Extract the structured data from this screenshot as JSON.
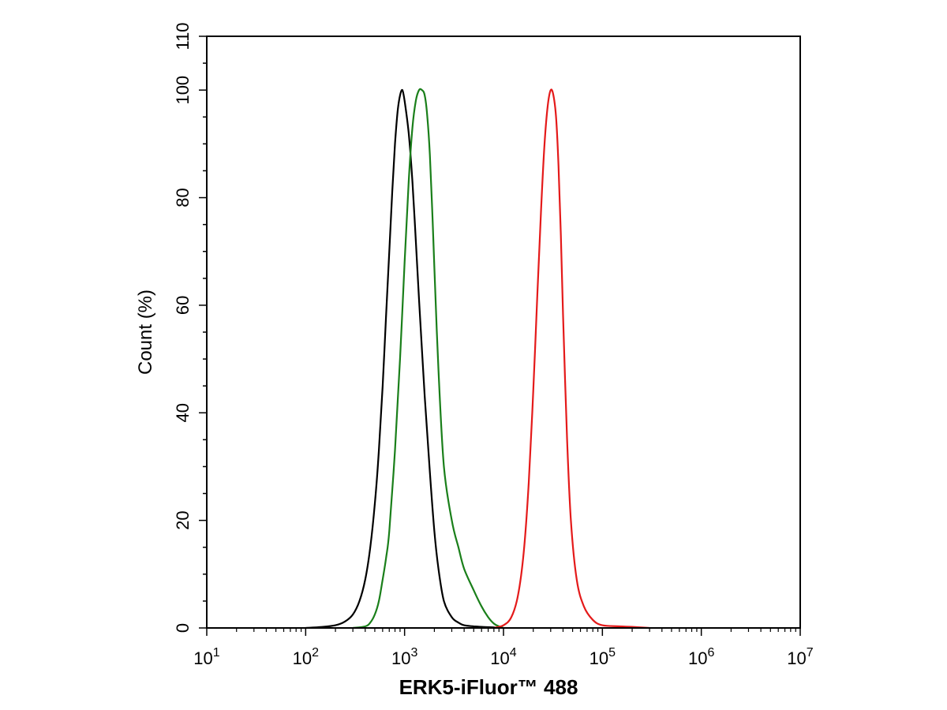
{
  "chart_data": {
    "type": "line",
    "x_scale": "log",
    "xlim": [
      10,
      10000000
    ],
    "ylim": [
      0,
      110
    ],
    "grid": false,
    "xlabel": "ERK5-iFluor™ 488",
    "ylabel": "Count  (%)",
    "x_ticks": [
      {
        "base": "10",
        "exp": "1",
        "value": 10
      },
      {
        "base": "10",
        "exp": "2",
        "value": 100
      },
      {
        "base": "10",
        "exp": "3",
        "value": 1000
      },
      {
        "base": "10",
        "exp": "4",
        "value": 10000
      },
      {
        "base": "10",
        "exp": "5",
        "value": 100000
      },
      {
        "base": "10",
        "exp": "6",
        "value": 1000000
      },
      {
        "base": "10",
        "exp": "7",
        "value": 10000000
      }
    ],
    "y_ticks": [
      "0",
      "20",
      "40",
      "60",
      "80",
      "100",
      "110"
    ],
    "series": [
      {
        "color": "#000000",
        "x": [
          100,
          150,
          200,
          250,
          300,
          350,
          400,
          450,
          500,
          550,
          600,
          650,
          700,
          750,
          800,
          850,
          900,
          950,
          1000,
          1100,
          1200,
          1300,
          1400,
          1600,
          1800,
          2000,
          2200,
          2500,
          3000,
          3500,
          4000,
          5000,
          6000,
          8000,
          10000
        ],
        "y": [
          0,
          0.2,
          0.5,
          1.2,
          2.5,
          5,
          9,
          15,
          23,
          33,
          45,
          58,
          70,
          81,
          90,
          96,
          99,
          100,
          98,
          92,
          83,
          72,
          61,
          43,
          29,
          18,
          11,
          5,
          2,
          1,
          0.5,
          0.3,
          0.2,
          0.1,
          0
        ]
      },
      {
        "color": "#1a7f1a",
        "x": [
          300,
          400,
          450,
          500,
          550,
          600,
          650,
          700,
          800,
          900,
          1000,
          1100,
          1200,
          1300,
          1400,
          1500,
          1600,
          1700,
          1800,
          1900,
          2000,
          2200,
          2500,
          3000,
          3500,
          4000,
          5000,
          6000,
          7000,
          8000,
          9000,
          10000
        ],
        "y": [
          0,
          0.3,
          1,
          2.5,
          5,
          9,
          13,
          18,
          33,
          50,
          68,
          83,
          93,
          98,
          100,
          100,
          99,
          95,
          88,
          78,
          67,
          48,
          30,
          20,
          15,
          11,
          7,
          4,
          2,
          0.8,
          0.3,
          0
        ]
      },
      {
        "color": "#e41a1a",
        "x": [
          8000,
          10000,
          12000,
          14000,
          16000,
          18000,
          20000,
          22000,
          24000,
          26000,
          28000,
          30000,
          32000,
          34000,
          36000,
          38000,
          40000,
          44000,
          48000,
          55000,
          65000,
          80000,
          100000,
          150000,
          200000,
          300000
        ],
        "y": [
          0,
          0.5,
          2,
          6,
          14,
          27,
          44,
          62,
          78,
          90,
          97,
          100,
          99,
          95,
          86,
          73,
          58,
          35,
          20,
          9,
          4,
          1.5,
          0.5,
          0.3,
          0.2,
          0
        ]
      }
    ]
  }
}
